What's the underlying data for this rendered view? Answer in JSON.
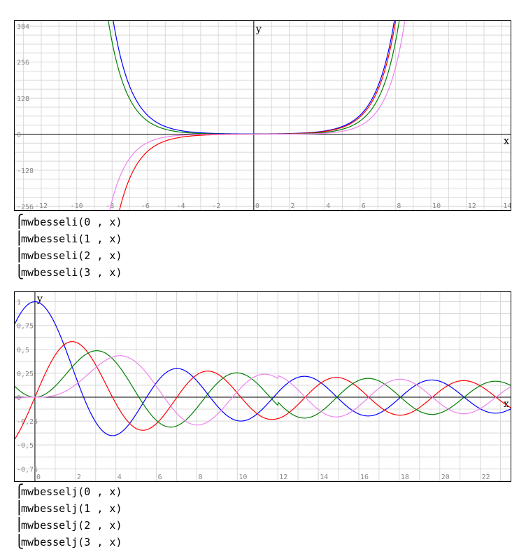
{
  "chart_data": [
    {
      "type": "line",
      "xlim": [
        -13.5,
        14.5
      ],
      "ylim": [
        -256,
        384
      ],
      "y_visible_max": 402,
      "xticks": [
        -12,
        -10,
        -8,
        -6,
        -4,
        -2,
        0,
        2,
        4,
        6,
        8,
        10,
        12,
        14
      ],
      "xtick_labels": [
        "-12",
        "-10",
        "-8",
        "-6",
        "-4",
        "-2",
        "0",
        "2",
        "4",
        "6",
        "8",
        "10",
        "12",
        "14"
      ],
      "yticks": [
        384,
        256,
        128,
        0,
        -128,
        -256
      ],
      "ytick_labels": [
        "384",
        "256",
        "128",
        "0",
        "-128",
        "-256"
      ],
      "xlabel": "x",
      "ylabel": "y",
      "grid": true,
      "series": [
        {
          "name": "mwbesseli(0 , x)",
          "function": "besseli",
          "order": 0,
          "color": "#0000ff"
        },
        {
          "name": "mwbesseli(1 , x)",
          "function": "besseli",
          "order": 1,
          "color": "#ff0000"
        },
        {
          "name": "mwbesseli(2 , x)",
          "function": "besseli",
          "order": 2,
          "color": "#008000"
        },
        {
          "name": "mwbesseli(3 , x)",
          "function": "besseli",
          "order": 3,
          "color": "#ee82ee"
        }
      ]
    },
    {
      "type": "line",
      "xlim": [
        -1,
        23.5
      ],
      "ylim": [
        -0.85,
        1.1
      ],
      "xticks": [
        0,
        2,
        4,
        6,
        8,
        10,
        12,
        14,
        16,
        18,
        20,
        22
      ],
      "xtick_labels": [
        "0",
        "2",
        "4",
        "6",
        "8",
        "10",
        "12",
        "14",
        "16",
        "18",
        "20",
        "22"
      ],
      "yticks": [
        1,
        0.75,
        0.5,
        0.25,
        0,
        -0.25,
        -0.5,
        -0.75
      ],
      "ytick_labels": [
        "1",
        "0,75",
        "0,5",
        "0,25",
        "0",
        "-0,25",
        "-0,5",
        "-0,75"
      ],
      "xlabel": "x",
      "ylabel": "y",
      "grid": true,
      "series": [
        {
          "name": "mwbesselj(0 , x)",
          "function": "besselj",
          "order": 0,
          "color": "#0000ff"
        },
        {
          "name": "mwbesselj(1 , x)",
          "function": "besselj",
          "order": 1,
          "color": "#ff0000"
        },
        {
          "name": "mwbesselj(2 , x)",
          "function": "besselj",
          "order": 2,
          "color": "#008000"
        },
        {
          "name": "mwbesselj(3 , x)",
          "function": "besselj",
          "order": 3,
          "color": "#ee82ee"
        }
      ]
    }
  ],
  "legends": [
    {
      "entries": [
        "mwbesseli(0 , x)",
        "mwbesseli(1 , x)",
        "mwbesseli(2 , x)",
        "mwbesseli(3 , x)"
      ]
    },
    {
      "entries": [
        "mwbesselj(0 , x)",
        "mwbesselj(1 , x)",
        "mwbesselj(2 , x)",
        "mwbesselj(3 , x)"
      ]
    }
  ]
}
